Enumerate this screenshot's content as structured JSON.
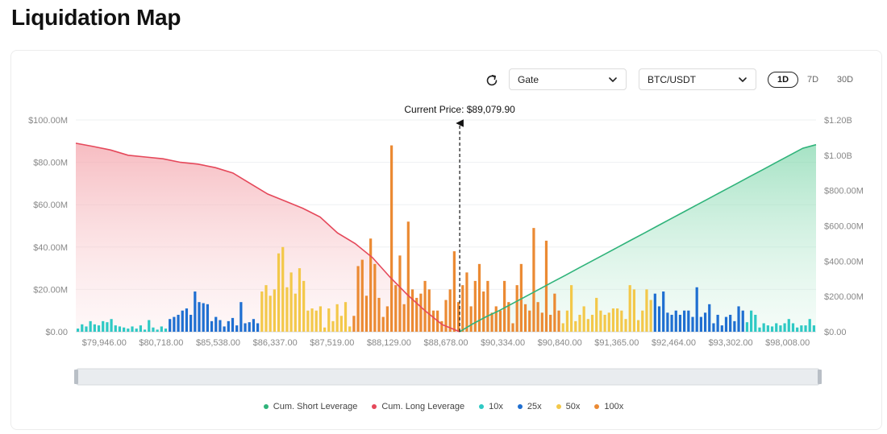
{
  "page": {
    "title": "Liquidation Map"
  },
  "toolbar": {
    "refresh_icon": "refresh-icon",
    "exchange": {
      "selected": "Gate"
    },
    "pair": {
      "selected": "BTC/USDT"
    },
    "timeframes": [
      {
        "label": "1D",
        "active": true
      },
      {
        "label": "7D",
        "active": false
      },
      {
        "label": "30D",
        "active": false
      }
    ]
  },
  "colors": {
    "short_line": "#2fb37a",
    "long_line": "#e5485a",
    "x10": "#2ec9c4",
    "x25": "#1f6fd1",
    "x50": "#f3c84a",
    "x100": "#eb8a33"
  },
  "chart_data": {
    "type": "bar",
    "annotation": "Current Price: $89,079.90",
    "current_price": 89079.9,
    "y_left": {
      "ylim": [
        0,
        100
      ],
      "ticks": [
        "$0.00",
        "$20.00M",
        "$40.00M",
        "$60.00M",
        "$80.00M",
        "$100.00M"
      ]
    },
    "y_right": {
      "ylim": [
        0,
        1200
      ],
      "ticks": [
        "$0.00",
        "$200.00M",
        "$400.00M",
        "$600.00M",
        "$800.00M",
        "$1.00B",
        "$1.20B"
      ]
    },
    "x_tick_labels": [
      "$79,946.00",
      "$80,718.00",
      "$85,538.00",
      "$86,337.00",
      "$87,519.00",
      "$88,129.00",
      "$88,678.00",
      "$90,334.00",
      "$90,840.00",
      "$91,365.00",
      "$92,464.00",
      "$93,302.00",
      "$98,008.00"
    ],
    "legend": [
      "Cum. Short Leverage",
      "Cum. Long Leverage",
      "10x",
      "25x",
      "50x",
      "100x"
    ],
    "bars": {
      "leverage": [
        "10x",
        "10x",
        "10x",
        "10x",
        "10x",
        "10x",
        "10x",
        "10x",
        "10x",
        "10x",
        "10x",
        "10x",
        "10x",
        "10x",
        "10x",
        "10x",
        "10x",
        "10x",
        "10x",
        "10x",
        "10x",
        "10x",
        "25x",
        "25x",
        "25x",
        "25x",
        "25x",
        "25x",
        "25x",
        "25x",
        "25x",
        "25x",
        "25x",
        "25x",
        "25x",
        "25x",
        "25x",
        "25x",
        "25x",
        "25x",
        "25x",
        "25x",
        "25x",
        "25x",
        "50x",
        "50x",
        "50x",
        "50x",
        "50x",
        "50x",
        "50x",
        "50x",
        "50x",
        "50x",
        "50x",
        "50x",
        "50x",
        "50x",
        "50x",
        "50x",
        "50x",
        "50x",
        "50x",
        "50x",
        "50x",
        "50x",
        "100x",
        "100x",
        "100x",
        "100x",
        "100x",
        "100x",
        "100x",
        "100x",
        "100x",
        "100x",
        "100x",
        "100x",
        "100x",
        "100x",
        "100x",
        "100x",
        "100x",
        "100x",
        "100x",
        "100x",
        "100x",
        "100x",
        "100x",
        "100x",
        "100x",
        "100x",
        "100x",
        "100x",
        "100x",
        "100x",
        "100x",
        "100x",
        "100x",
        "100x",
        "100x",
        "100x",
        "100x",
        "100x",
        "100x",
        "100x",
        "100x",
        "100x",
        "100x",
        "100x",
        "100x",
        "100x",
        "100x",
        "100x",
        "100x",
        "100x",
        "50x",
        "50x",
        "50x",
        "50x",
        "50x",
        "50x",
        "50x",
        "50x",
        "50x",
        "50x",
        "50x",
        "50x",
        "50x",
        "50x",
        "50x",
        "50x",
        "50x",
        "50x",
        "50x",
        "50x",
        "50x",
        "50x",
        "25x",
        "25x",
        "25x",
        "25x",
        "25x",
        "25x",
        "25x",
        "25x",
        "25x",
        "25x",
        "25x",
        "25x",
        "25x",
        "25x",
        "25x",
        "25x",
        "25x",
        "25x",
        "25x",
        "25x",
        "25x",
        "25x",
        "10x",
        "10x",
        "10x",
        "10x",
        "10x",
        "10x",
        "10x",
        "10x",
        "10x",
        "10x",
        "10x",
        "10x",
        "10x",
        "10x",
        "10x",
        "10x",
        "10x",
        "10x",
        "10x",
        "10x",
        "10x",
        "10x"
      ],
      "values": [
        1.5,
        3.5,
        2.5,
        5,
        3.5,
        3,
        5,
        4.5,
        6,
        3,
        2.5,
        2,
        1.5,
        2.5,
        1.5,
        3,
        1,
        5.5,
        2,
        1,
        2.5,
        1.5,
        6,
        7,
        8,
        10,
        11,
        8,
        19,
        14,
        13.5,
        13,
        5,
        7,
        5.5,
        2.5,
        5,
        6.5,
        3,
        14,
        4,
        4.5,
        6,
        4,
        19,
        22,
        17,
        20,
        37,
        40,
        21,
        28,
        18,
        30,
        24,
        10,
        11,
        10,
        12,
        2,
        11,
        5,
        13,
        7.5,
        14,
        2.5,
        7.5,
        31,
        34,
        17,
        44,
        32,
        16,
        7,
        12,
        88,
        22,
        36,
        13,
        52,
        20,
        16,
        18,
        24,
        20,
        10,
        10,
        5,
        15,
        20,
        38,
        14,
        22,
        28,
        12,
        24,
        32,
        19,
        24,
        9,
        12,
        10,
        24,
        14,
        4,
        22,
        32,
        13,
        10,
        49,
        14,
        9,
        43,
        8,
        18,
        10,
        4,
        10,
        22,
        5,
        8,
        12,
        6,
        8,
        16,
        10,
        8,
        9,
        11,
        11,
        10,
        6,
        22,
        20,
        5.5,
        10,
        20,
        15,
        18,
        12,
        19,
        9,
        8,
        10,
        8,
        10,
        10,
        7,
        21,
        7,
        9,
        13,
        4,
        8,
        3,
        7,
        8,
        5,
        12,
        10,
        4.5,
        10,
        8,
        2,
        4,
        3,
        2.5,
        4,
        3,
        4,
        6,
        4,
        2,
        3,
        3,
        6,
        3
      ]
    },
    "cum_short_m": [
      0,
      45,
      85,
      120,
      160,
      200,
      240,
      280,
      320,
      360,
      400,
      440,
      480,
      520,
      560,
      600,
      640,
      680,
      720,
      760,
      800,
      840,
      880,
      920,
      960,
      1000,
      1040,
      1060
    ],
    "cum_long_m": [
      1068,
      1050,
      1030,
      1000,
      990,
      980,
      960,
      950,
      930,
      900,
      840,
      780,
      740,
      700,
      650,
      560,
      500,
      420,
      310,
      210,
      120,
      40,
      0
    ]
  }
}
